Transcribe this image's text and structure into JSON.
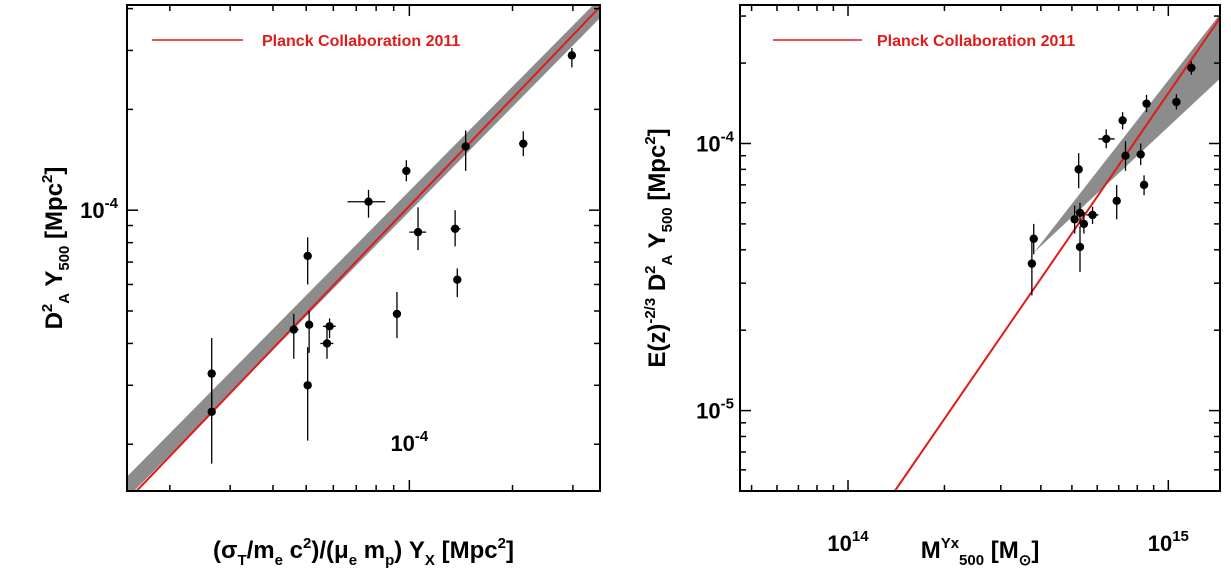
{
  "colors": {
    "fit_line": "#e11a1a",
    "band": "#8c8c8c",
    "points": "#000000",
    "frame": "#000000"
  },
  "chart_data": [
    {
      "type": "scatter",
      "scale": "log-log",
      "legend": {
        "label": "Planck Collaboration 2011",
        "placement": "top-left"
      },
      "xlabel": {
        "pre": "(σ",
        "sub1": "T",
        "mid1": "/m",
        "sub2": "e",
        "mid2": " c",
        "sup1": "2",
        "mid3": ")/(μ",
        "sub3": "e",
        "mid4": " m",
        "sub4": "p",
        "mid5": ") Y",
        "sub5": "X",
        "mid6": "  [Mpc",
        "sup2": "2",
        "post": "]"
      },
      "ylabel": {
        "pre": "D",
        "sup1": "2",
        "sub1": "A",
        "mid1": "  Y",
        "sub2": "500",
        "mid2": "  [Mpc",
        "sup2": "2",
        "post": "]"
      },
      "xlim": [
        1.5e-05,
        0.00036
      ],
      "ylim": [
        1.45e-05,
        0.00041
      ],
      "x_ticks": [
        {
          "value": 0.0001,
          "base": "10",
          "exp": "-4"
        }
      ],
      "y_ticks": [
        {
          "value": 0.0001,
          "base": "10",
          "exp": "-4"
        }
      ],
      "fit_line": {
        "x": [
          1.6e-05,
          0.00036
        ],
        "y": [
          1.45e-05,
          0.000405
        ]
      },
      "fit_band": {
        "x": [
          1.5e-05,
          0.00036
        ],
        "lower": [
          1.38e-05,
          0.000375
        ],
        "upper": [
          1.6e-05,
          0.00043
        ]
      },
      "points": [
        {
          "x": 2.65e-05,
          "y": 3.25e-05,
          "ylo": 2.6e-05,
          "yhi": 4.15e-05
        },
        {
          "x": 2.65e-05,
          "y": 2.5e-05,
          "ylo": 1.75e-05,
          "yhi": 3.15e-05
        },
        {
          "x": 4.6e-05,
          "y": 4.4e-05,
          "ylo": 3.6e-05,
          "yhi": 4.9e-05,
          "xlo": 4.5e-05,
          "xhi": 4.75e-05
        },
        {
          "x": 5.05e-05,
          "y": 7.3e-05,
          "ylo": 6e-05,
          "yhi": 8.3e-05
        },
        {
          "x": 5.1e-05,
          "y": 4.55e-05,
          "ylo": 3.75e-05,
          "yhi": 5e-05
        },
        {
          "x": 5.05e-05,
          "y": 3e-05,
          "ylo": 2.05e-05,
          "yhi": 3.9e-05
        },
        {
          "x": 5.85e-05,
          "y": 4.5e-05,
          "ylo": 4.15e-05,
          "yhi": 4.75e-05,
          "xlo": 5.6e-05,
          "xhi": 6.1e-05
        },
        {
          "x": 5.75e-05,
          "y": 4e-05,
          "ylo": 3.6e-05,
          "yhi": 4.4e-05,
          "xlo": 5.5e-05,
          "xhi": 6e-05
        },
        {
          "x": 7.6e-05,
          "y": 0.000106,
          "ylo": 9.5e-05,
          "yhi": 0.000115,
          "xlo": 6.6e-05,
          "xhi": 8.5e-05
        },
        {
          "x": 9.2e-05,
          "y": 4.9e-05,
          "ylo": 4.15e-05,
          "yhi": 5.7e-05,
          "xlo": 9e-05,
          "xhi": 9.45e-05
        },
        {
          "x": 9.8e-05,
          "y": 0.000131,
          "ylo": 0.000122,
          "yhi": 0.000141,
          "xlo": 9.6e-05,
          "xhi": 0.0001
        },
        {
          "x": 0.000106,
          "y": 8.6e-05,
          "ylo": 7.6e-05,
          "yhi": 0.000102,
          "xlo": 0.0001,
          "xhi": 0.000112
        },
        {
          "x": 0.000136,
          "y": 8.8e-05,
          "ylo": 7.8e-05,
          "yhi": 0.0001,
          "xlo": 0.000132,
          "xhi": 0.000141
        },
        {
          "x": 0.000138,
          "y": 6.2e-05,
          "ylo": 5.5e-05,
          "yhi": 6.7e-05
        },
        {
          "x": 0.000146,
          "y": 0.000155,
          "ylo": 0.000131,
          "yhi": 0.000173
        },
        {
          "x": 0.000215,
          "y": 0.000158,
          "ylo": 0.000145,
          "yhi": 0.000172,
          "xlo": 0.000209,
          "xhi": 0.000221
        },
        {
          "x": 0.000298,
          "y": 0.00029,
          "ylo": 0.000267,
          "yhi": 0.000305,
          "xlo": 0.000292,
          "xhi": 0.000305
        }
      ]
    },
    {
      "type": "scatter",
      "scale": "log-log",
      "legend": {
        "label": "Planck Collaboration 2011",
        "placement": "top-left"
      },
      "xlabel": {
        "pre": "M",
        "sub1": "500",
        "sup1": "Yx",
        "mid1": " [M",
        "sub2": "⊙",
        "post": "]"
      },
      "ylabel": {
        "pre": "E(z)",
        "sup1": "-2/3",
        "mid1": " D",
        "sup2": "2",
        "sub1": "A",
        "mid2": "  Y",
        "sub2": "500",
        "mid3": "  [Mpc",
        "sup3": "2",
        "post": "]"
      },
      "xlim": [
        46000000000000.0,
        1450000000000000.0
      ],
      "ylim": [
        5e-06,
        0.00033
      ],
      "x_ticks": [
        {
          "value": 100000000000000.0,
          "base": "10",
          "exp": "14"
        },
        {
          "value": 1000000000000000.0,
          "base": "10",
          "exp": "15"
        }
      ],
      "y_ticks": [
        {
          "value": 1e-05,
          "base": "10",
          "exp": "-5"
        },
        {
          "value": 0.0001,
          "base": "10",
          "exp": "-4"
        }
      ],
      "fit_line": {
        "x": [
          140000000000000.0,
          1450000000000000.0
        ],
        "y": [
          5e-06,
          0.000295
        ]
      },
      "fit_band": {
        "x": [
          80000000000000.0,
          380000000000000.0,
          1450000000000000.0
        ],
        "lower": [
          5e-06,
          3.9e-05,
          0.000175
        ],
        "upper": [
          5e-06,
          3.9e-05,
          0.000305
        ]
      },
      "points": [
        {
          "x": 380000000000000.0,
          "y": 4.4e-05,
          "ylo": 3.85e-05,
          "yhi": 5e-05
        },
        {
          "x": 375000000000000.0,
          "y": 3.55e-05,
          "ylo": 2.7e-05,
          "yhi": 4.3e-05
        },
        {
          "x": 510000000000000.0,
          "y": 5.2e-05,
          "ylo": 4.6e-05,
          "yhi": 5.85e-05,
          "xlo": 495000000000000.0,
          "xhi": 520000000000000.0
        },
        {
          "x": 525000000000000.0,
          "y": 8e-05,
          "ylo": 6.8e-05,
          "yhi": 9.2e-05
        },
        {
          "x": 530000000000000.0,
          "y": 5.5e-05,
          "ylo": 5e-05,
          "yhi": 6e-05,
          "xlo": 515000000000000.0,
          "xhi": 550000000000000.0
        },
        {
          "x": 545000000000000.0,
          "y": 5e-05,
          "ylo": 4.6e-05,
          "yhi": 5.45e-05
        },
        {
          "x": 580000000000000.0,
          "y": 5.4e-05,
          "ylo": 5e-05,
          "yhi": 5.8e-05,
          "xlo": 555000000000000.0,
          "xhi": 605000000000000.0
        },
        {
          "x": 530000000000000.0,
          "y": 4.1e-05,
          "ylo": 3.3e-05,
          "yhi": 4.9e-05
        },
        {
          "x": 640000000000000.0,
          "y": 0.000104,
          "ylo": 9.6e-05,
          "yhi": 0.000113,
          "xlo": 605000000000000.0,
          "xhi": 680000000000000.0
        },
        {
          "x": 690000000000000.0,
          "y": 6.1e-05,
          "ylo": 5.2e-05,
          "yhi": 7e-05
        },
        {
          "x": 720000000000000.0,
          "y": 0.000122,
          "ylo": 0.000113,
          "yhi": 0.000131
        },
        {
          "x": 735000000000000.0,
          "y": 9e-05,
          "ylo": 7.9e-05,
          "yhi": 0.000102
        },
        {
          "x": 820000000000000.0,
          "y": 9.1e-05,
          "ylo": 8.3e-05,
          "yhi": 0.0001
        },
        {
          "x": 840000000000000.0,
          "y": 7e-05,
          "ylo": 6.4e-05,
          "yhi": 7.6e-05
        },
        {
          "x": 855000000000000.0,
          "y": 0.000141,
          "ylo": 0.000131,
          "yhi": 0.000152
        },
        {
          "x": 1060000000000000.0,
          "y": 0.000143,
          "ylo": 0.000134,
          "yhi": 0.000153
        },
        {
          "x": 1180000000000000.0,
          "y": 0.000192,
          "ylo": 0.000181,
          "yhi": 0.000203
        }
      ]
    }
  ]
}
